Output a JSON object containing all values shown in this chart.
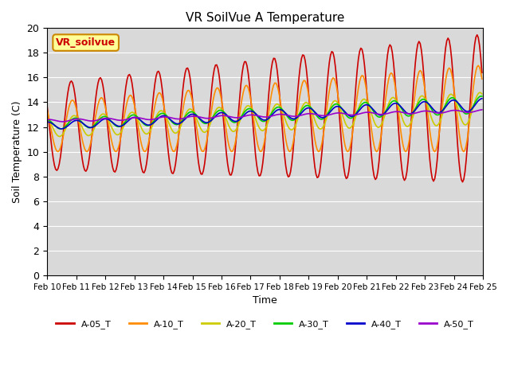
{
  "title": "VR SoilVue A Temperature",
  "xlabel": "Time",
  "ylabel": "Soil Temperature (C)",
  "ylim": [
    0,
    20
  ],
  "bg_color": "#d9d9d9",
  "fig_color": "#ffffff",
  "annotation_text": "VR_soilvue",
  "annotation_color": "#cc0000",
  "annotation_bg": "#ffff99",
  "annotation_border": "#cc8800",
  "xtick_labels": [
    "Feb 10",
    "Feb 11",
    "Feb 12",
    "Feb 13",
    "Feb 14",
    "Feb 15",
    "Feb 16",
    "Feb 17",
    "Feb 18",
    "Feb 19",
    "Feb 20",
    "Feb 21",
    "Feb 22",
    "Feb 23",
    "Feb 24",
    "Feb 25"
  ],
  "ytick_values": [
    0,
    2,
    4,
    6,
    8,
    10,
    12,
    14,
    16,
    18,
    20
  ],
  "series_names": [
    "A-05_T",
    "A-10_T",
    "A-20_T",
    "A-30_T",
    "A-40_T",
    "A-50_T"
  ],
  "series_colors": [
    "#cc0000",
    "#ff8c00",
    "#cccc00",
    "#00cc00",
    "#0000cc",
    "#9900cc"
  ],
  "n_days": 15,
  "pts_per_day": 24
}
